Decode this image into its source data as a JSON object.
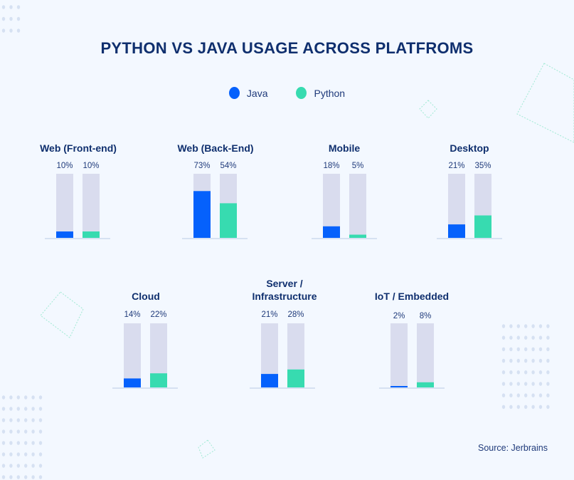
{
  "chart_data": {
    "type": "bar",
    "title": "PYTHON VS JAVA USAGE ACROSS PLATFROMS",
    "categories": [
      "Web (Front-end)",
      "Web (Back-End)",
      "Mobile",
      "Desktop",
      "Cloud",
      "Server / Infrastructure",
      "IoT / Embedded"
    ],
    "series": [
      {
        "name": "Java",
        "color": "#0561fc",
        "values": [
          10,
          73,
          18,
          21,
          14,
          21,
          2
        ]
      },
      {
        "name": "Python",
        "color": "#37dbb0",
        "values": [
          10,
          54,
          5,
          35,
          22,
          28,
          8
        ]
      }
    ],
    "value_labels": {
      "Java": [
        "10%",
        "73%",
        "18%",
        "21%",
        "14%",
        "21%",
        "2%"
      ],
      "Python": [
        "10%",
        "54%",
        "5%",
        "35%",
        "22%",
        "28%",
        "8%"
      ]
    },
    "ylim": [
      0,
      100
    ],
    "track_color": "#d9dcee",
    "grid": false,
    "legend_position": "top-center",
    "source": "Source: Jerbrains"
  }
}
